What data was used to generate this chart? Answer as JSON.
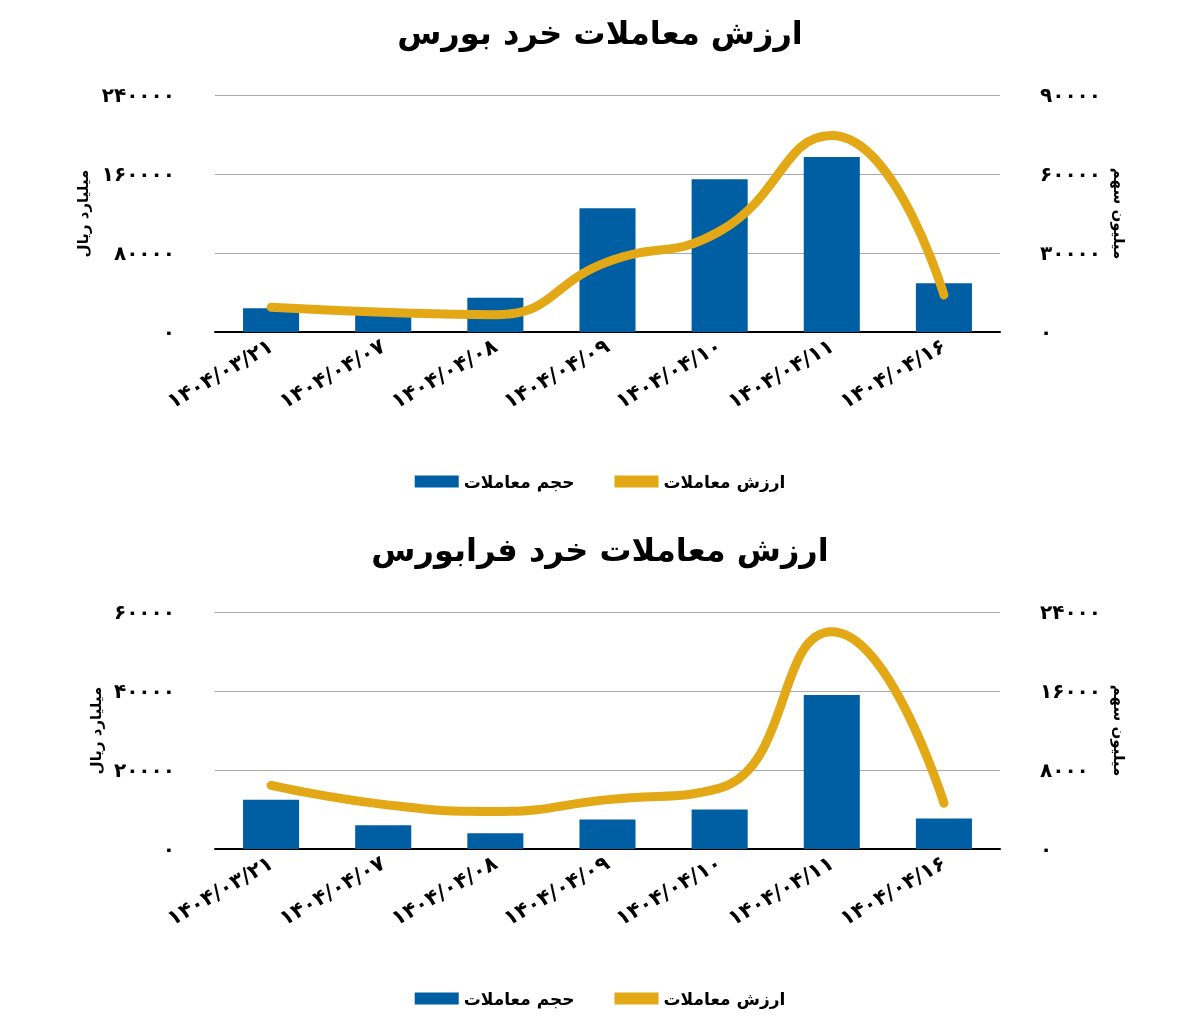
{
  "chart_data": [
    {
      "type": "bar",
      "title": "ارزش معاملات خرد بورس",
      "ylabel": "میلیارد ریال",
      "y2label": "میلیون سهم",
      "categories": [
        "۱۴۰۴/۰۳/۲۱",
        "۱۴۰۴/۰۴/۰۷",
        "۱۴۰۴/۰۴/۰۸",
        "۱۴۰۴/۰۴/۰۹",
        "۱۴۰۴/۰۴/۱۰",
        "۱۴۰۴/۰۴/۱۱",
        "۱۴۰۴/۰۴/۱۶"
      ],
      "series": [
        {
          "name": "حجم معاملات",
          "axis": "y2",
          "color": "#005ea2",
          "values": [
            9000,
            6500,
            13000,
            47000,
            58000,
            66500,
            18500
          ]
        },
        {
          "name": "ارزش معاملات",
          "type": "line",
          "color": "#e2a816",
          "values": [
            25000,
            20000,
            17500,
            71000,
            102000,
            199000,
            37500
          ]
        }
      ],
      "ylim": [
        0,
        240000
      ],
      "yticks": [
        {
          "value": 0,
          "label": "۰"
        },
        {
          "value": 80000,
          "label": "۸۰۰۰۰"
        },
        {
          "value": 160000,
          "label": "۱۶۰۰۰۰"
        },
        {
          "value": 240000,
          "label": "۲۴۰۰۰۰"
        }
      ],
      "y2lim": [
        0,
        90000
      ],
      "y2ticks": [
        {
          "value": 0,
          "label": "۰"
        },
        {
          "value": 30000,
          "label": "۳۰۰۰۰"
        },
        {
          "value": 60000,
          "label": "۶۰۰۰۰"
        },
        {
          "value": 90000,
          "label": "۹۰۰۰۰"
        }
      ],
      "grid": "y",
      "legend": "bottom",
      "marker": "none",
      "line_style": "solid"
    },
    {
      "type": "bar",
      "title": "ارزش معاملات خرد فرابورس",
      "ylabel": "میلیارد ریال",
      "y2label": "میلیون سهم",
      "categories": [
        "۱۴۰۴/۰۳/۲۱",
        "۱۴۰۴/۰۴/۰۷",
        "۱۴۰۴/۰۴/۰۸",
        "۱۴۰۴/۰۴/۰۹",
        "۱۴۰۴/۰۴/۱۰",
        "۱۴۰۴/۰۴/۱۱",
        "۱۴۰۴/۰۴/۱۶"
      ],
      "series": [
        {
          "name": "حجم معاملات",
          "axis": "y2",
          "color": "#005ea2",
          "values": [
            5000,
            2400,
            1600,
            3000,
            4000,
            15600,
            3100
          ]
        },
        {
          "name": "ارزش معاملات",
          "type": "line",
          "color": "#e2a816",
          "values": [
            16100,
            11300,
            9500,
            12500,
            15400,
            55000,
            11600
          ]
        }
      ],
      "ylim": [
        0,
        60000
      ],
      "yticks": [
        {
          "value": 0,
          "label": "۰"
        },
        {
          "value": 20000,
          "label": "۲۰۰۰۰"
        },
        {
          "value": 40000,
          "label": "۴۰۰۰۰"
        },
        {
          "value": 60000,
          "label": "۶۰۰۰۰"
        }
      ],
      "y2lim": [
        0,
        24000
      ],
      "y2ticks": [
        {
          "value": 0,
          "label": "۰"
        },
        {
          "value": 8000,
          "label": "۸۰۰۰"
        },
        {
          "value": 16000,
          "label": "۱۶۰۰۰"
        },
        {
          "value": 24000,
          "label": "۲۴۰۰۰"
        }
      ],
      "grid": "y",
      "legend": "bottom",
      "marker": "none",
      "line_style": "solid"
    }
  ]
}
